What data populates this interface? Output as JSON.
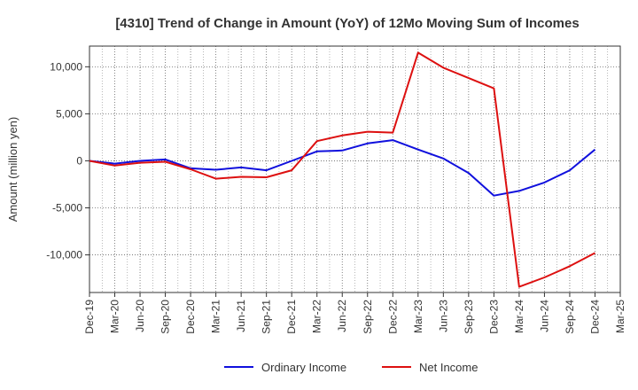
{
  "chart_data": {
    "type": "line",
    "title": "[4310]  Trend of Change in Amount (YoY) of 12Mo Moving Sum of Incomes",
    "ylabel": "Amount (million yen)",
    "xlabel": "",
    "x": [
      "Dec-19",
      "Mar-20",
      "Jun-20",
      "Sep-20",
      "Dec-20",
      "Mar-21",
      "Jun-21",
      "Sep-21",
      "Dec-21",
      "Mar-22",
      "Jun-22",
      "Sep-22",
      "Dec-22",
      "Mar-23",
      "Jun-23",
      "Sep-23",
      "Dec-23",
      "Mar-24",
      "Jun-24",
      "Sep-24",
      "Dec-24",
      "Mar-25"
    ],
    "ylim": [
      -14000,
      12200
    ],
    "yticks": [
      10000,
      5000,
      0,
      -5000,
      -10000
    ],
    "ytick_labels": [
      "10,000",
      "5,000",
      "0",
      "-5,000",
      "-10,000"
    ],
    "grid": true,
    "legend_position": "bottom",
    "series": [
      {
        "name": "Ordinary Income",
        "color": "#1010dd",
        "values": [
          0,
          -300,
          0,
          150,
          -800,
          -950,
          -700,
          -1000,
          0,
          1000,
          1100,
          1850,
          2200,
          1200,
          250,
          -1300,
          -3700,
          -3200,
          -2300,
          -1000,
          1200,
          null
        ]
      },
      {
        "name": "Net Income",
        "color": "#dd1010",
        "values": [
          0,
          -500,
          -200,
          -100,
          -900,
          -1900,
          -1700,
          -1750,
          -1000,
          2100,
          2700,
          3100,
          3000,
          11500,
          9900,
          8800,
          7700,
          -13400,
          -12400,
          -11200,
          -9800,
          null
        ]
      }
    ]
  }
}
